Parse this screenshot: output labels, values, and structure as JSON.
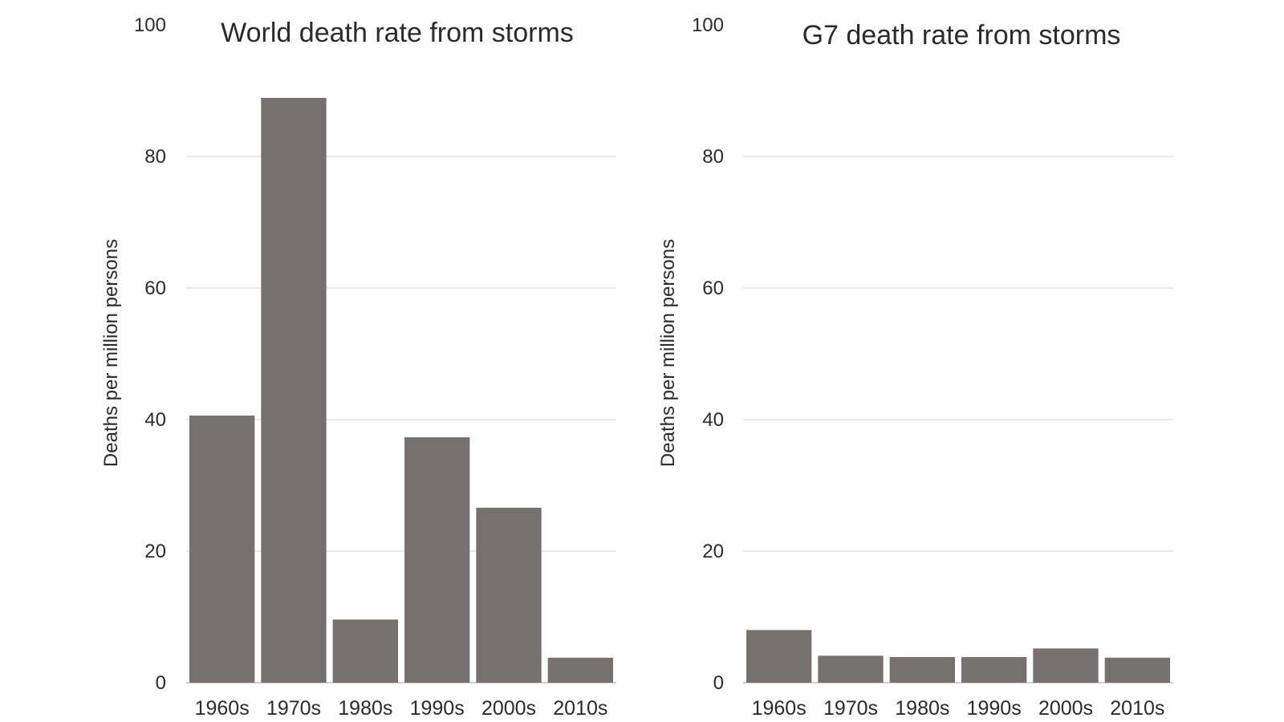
{
  "bar_color": "#767070",
  "chart_data": [
    {
      "type": "bar",
      "title": "World death rate from storms",
      "ylabel": "Deaths per million persons",
      "xlabel": "",
      "categories": [
        "1960s",
        "1970s",
        "1980s",
        "1990s",
        "2000s",
        "2010s"
      ],
      "values": [
        40.6,
        88.9,
        9.6,
        37.3,
        26.6,
        3.8
      ],
      "ylim": [
        0,
        100
      ],
      "yticks": [
        "0",
        "20",
        "40",
        "60",
        "80",
        "100"
      ],
      "grid": true
    },
    {
      "type": "bar",
      "title": "G7 death rate from storms",
      "ylabel": "Deaths per million persons",
      "xlabel": "",
      "categories": [
        "1960s",
        "1970s",
        "1980s",
        "1990s",
        "2000s",
        "2010s"
      ],
      "values": [
        8.0,
        4.1,
        3.9,
        3.9,
        5.2,
        3.8
      ],
      "ylim": [
        0,
        100
      ],
      "yticks": [
        "0",
        "20",
        "40",
        "60",
        "80",
        "100"
      ],
      "grid": true
    }
  ]
}
